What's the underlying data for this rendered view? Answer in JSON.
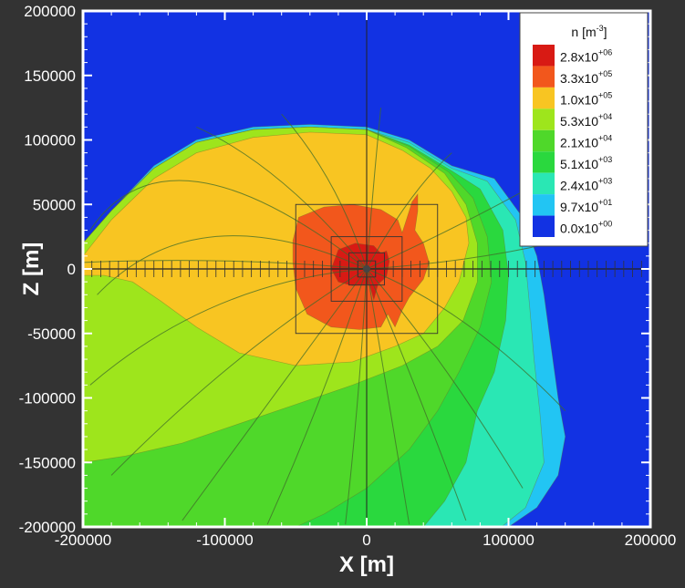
{
  "chart_data": {
    "type": "contour",
    "xlabel": "X [m]",
    "ylabel": "Z [m]",
    "xlim": [
      -200000,
      200000
    ],
    "ylim": [
      -200000,
      200000
    ],
    "xticks": [
      -200000,
      -100000,
      0,
      100000,
      200000
    ],
    "xtick_labels": [
      "-200000",
      "-100000",
      "0",
      "100000",
      "200000"
    ],
    "yticks": [
      -200000,
      -150000,
      -100000,
      -50000,
      0,
      50000,
      100000,
      150000,
      200000
    ],
    "ytick_labels": [
      "-200000",
      "-150000",
      "-100000",
      "-50000",
      "0",
      "50000",
      "100000",
      "150000",
      "200000"
    ],
    "legend": {
      "title_base": "n [m",
      "title_exp": "-3",
      "title_end": "]",
      "placement": "top-right",
      "levels": [
        {
          "mant": "2.8x10",
          "exp": "+06",
          "color": "#d81a14"
        },
        {
          "mant": "3.3x10",
          "exp": "+05",
          "color": "#f2571c"
        },
        {
          "mant": "1.0x10",
          "exp": "+05",
          "color": "#f8c522"
        },
        {
          "mant": "5.3x10",
          "exp": "+04",
          "color": "#9ee51c"
        },
        {
          "mant": "2.1x10",
          "exp": "+04",
          "color": "#4fd82a"
        },
        {
          "mant": "5.1x10",
          "exp": "+03",
          "color": "#2ad83e"
        },
        {
          "mant": "2.4x10",
          "exp": "+03",
          "color": "#2ae7b4"
        },
        {
          "mant": "9.7x10",
          "exp": "+01",
          "color": "#22c5f3"
        },
        {
          "mant": "0.0x10",
          "exp": "+00",
          "color": "#1232e3"
        }
      ]
    },
    "background_color": "#1232e3",
    "grid": false,
    "mesh_boxes_half_width": [
      50000,
      25000,
      12500,
      6250
    ],
    "regions": [
      {
        "level": 8,
        "polygon": [
          [
            -200000,
            200000
          ],
          [
            200000,
            200000
          ],
          [
            200000,
            -200000
          ],
          [
            -200000,
            -200000
          ]
        ]
      },
      {
        "level": 7,
        "polygon": [
          [
            -200000,
            20000
          ],
          [
            -180000,
            45000
          ],
          [
            -150000,
            80000
          ],
          [
            -120000,
            100000
          ],
          [
            -80000,
            110000
          ],
          [
            -40000,
            112000
          ],
          [
            0,
            110000
          ],
          [
            30000,
            100000
          ],
          [
            60000,
            80000
          ],
          [
            90000,
            70000
          ],
          [
            110000,
            40000
          ],
          [
            120000,
            10000
          ],
          [
            125000,
            -20000
          ],
          [
            130000,
            -60000
          ],
          [
            135000,
            -100000
          ],
          [
            140000,
            -130000
          ],
          [
            135000,
            -160000
          ],
          [
            120000,
            -185000
          ],
          [
            100000,
            -200000
          ],
          [
            -200000,
            -200000
          ]
        ]
      },
      {
        "level": 6,
        "polygon": [
          [
            -200000,
            20000
          ],
          [
            -180000,
            45000
          ],
          [
            -150000,
            78000
          ],
          [
            -120000,
            98000
          ],
          [
            -80000,
            108000
          ],
          [
            -40000,
            110000
          ],
          [
            0,
            108000
          ],
          [
            30000,
            98000
          ],
          [
            60000,
            78000
          ],
          [
            85000,
            68000
          ],
          [
            105000,
            38000
          ],
          [
            112000,
            5000
          ],
          [
            115000,
            -30000
          ],
          [
            118000,
            -70000
          ],
          [
            122000,
            -110000
          ],
          [
            125000,
            -150000
          ],
          [
            112000,
            -185000
          ],
          [
            95000,
            -200000
          ],
          [
            -200000,
            -200000
          ]
        ]
      },
      {
        "level": 5,
        "polygon": [
          [
            -200000,
            20000
          ],
          [
            -180000,
            45000
          ],
          [
            -150000,
            78000
          ],
          [
            -120000,
            98000
          ],
          [
            -80000,
            108000
          ],
          [
            -40000,
            110000
          ],
          [
            0,
            108000
          ],
          [
            30000,
            96000
          ],
          [
            60000,
            76000
          ],
          [
            80000,
            62000
          ],
          [
            96000,
            30000
          ],
          [
            100000,
            -5000
          ],
          [
            98000,
            -40000
          ],
          [
            90000,
            -80000
          ],
          [
            78000,
            -110000
          ],
          [
            70000,
            -150000
          ],
          [
            55000,
            -180000
          ],
          [
            40000,
            -200000
          ],
          [
            -200000,
            -200000
          ]
        ]
      },
      {
        "level": 4,
        "polygon": [
          [
            -200000,
            20000
          ],
          [
            -180000,
            45000
          ],
          [
            -150000,
            78000
          ],
          [
            -120000,
            98000
          ],
          [
            -80000,
            108000
          ],
          [
            -40000,
            110000
          ],
          [
            0,
            108000
          ],
          [
            30000,
            95000
          ],
          [
            58000,
            75000
          ],
          [
            75000,
            55000
          ],
          [
            85000,
            25000
          ],
          [
            88000,
            -10000
          ],
          [
            80000,
            -45000
          ],
          [
            65000,
            -80000
          ],
          [
            50000,
            -110000
          ],
          [
            30000,
            -140000
          ],
          [
            0,
            -170000
          ],
          [
            -30000,
            -190000
          ],
          [
            -50000,
            -200000
          ],
          [
            -200000,
            -200000
          ]
        ]
      },
      {
        "level": 3,
        "polygon": [
          [
            -200000,
            20000
          ],
          [
            -180000,
            45000
          ],
          [
            -150000,
            78000
          ],
          [
            -120000,
            98000
          ],
          [
            -80000,
            108000
          ],
          [
            -40000,
            110000
          ],
          [
            0,
            108000
          ],
          [
            28000,
            94000
          ],
          [
            55000,
            74000
          ],
          [
            70000,
            50000
          ],
          [
            78000,
            20000
          ],
          [
            78000,
            -10000
          ],
          [
            68000,
            -40000
          ],
          [
            50000,
            -60000
          ],
          [
            25000,
            -75000
          ],
          [
            -10000,
            -90000
          ],
          [
            -50000,
            -105000
          ],
          [
            -90000,
            -120000
          ],
          [
            -130000,
            -135000
          ],
          [
            -170000,
            -145000
          ],
          [
            -200000,
            -150000
          ]
        ]
      },
      {
        "level": 2,
        "polygon": [
          [
            -200000,
            10000
          ],
          [
            -180000,
            38000
          ],
          [
            -150000,
            70000
          ],
          [
            -120000,
            90000
          ],
          [
            -80000,
            102000
          ],
          [
            -40000,
            106000
          ],
          [
            0,
            104000
          ],
          [
            25000,
            92000
          ],
          [
            45000,
            78000
          ],
          [
            60000,
            60000
          ],
          [
            70000,
            40000
          ],
          [
            72000,
            20000
          ],
          [
            65000,
            -10000
          ],
          [
            55000,
            -30000
          ],
          [
            40000,
            -50000
          ],
          [
            20000,
            -60000
          ],
          [
            -10000,
            -72000
          ],
          [
            -50000,
            -75000
          ],
          [
            -90000,
            -65000
          ],
          [
            -120000,
            -45000
          ],
          [
            -145000,
            -25000
          ],
          [
            -165000,
            -10000
          ],
          [
            -185000,
            -5000
          ],
          [
            -200000,
            -5000
          ]
        ]
      },
      {
        "level": 1,
        "polygon": [
          [
            -48000,
            40000
          ],
          [
            -30000,
            48000
          ],
          [
            -10000,
            50000
          ],
          [
            10000,
            46000
          ],
          [
            22000,
            38000
          ],
          [
            25000,
            28000
          ],
          [
            28000,
            38000
          ],
          [
            32000,
            52000
          ],
          [
            36000,
            58000
          ],
          [
            36000,
            45000
          ],
          [
            34000,
            30000
          ],
          [
            40000,
            20000
          ],
          [
            44000,
            5000
          ],
          [
            40000,
            -8000
          ],
          [
            30000,
            -22000
          ],
          [
            25000,
            -32000
          ],
          [
            20000,
            -45000
          ],
          [
            15000,
            -35000
          ],
          [
            10000,
            -45000
          ],
          [
            -5000,
            -47000
          ],
          [
            -25000,
            -45000
          ],
          [
            -42000,
            -35000
          ],
          [
            -50000,
            -15000
          ],
          [
            -52000,
            5000
          ],
          [
            -52000,
            22000
          ]
        ]
      },
      {
        "level": 0,
        "polygon": [
          [
            -20000,
            15000
          ],
          [
            -8000,
            20000
          ],
          [
            5000,
            18000
          ],
          [
            10000,
            12000
          ],
          [
            14000,
            14000
          ],
          [
            16000,
            6000
          ],
          [
            14000,
            -6000
          ],
          [
            8000,
            -12000
          ],
          [
            5000,
            -24000
          ],
          [
            2000,
            -12000
          ],
          [
            -10000,
            -13000
          ],
          [
            -20000,
            -10000
          ],
          [
            -25000,
            0
          ]
        ]
      }
    ]
  }
}
